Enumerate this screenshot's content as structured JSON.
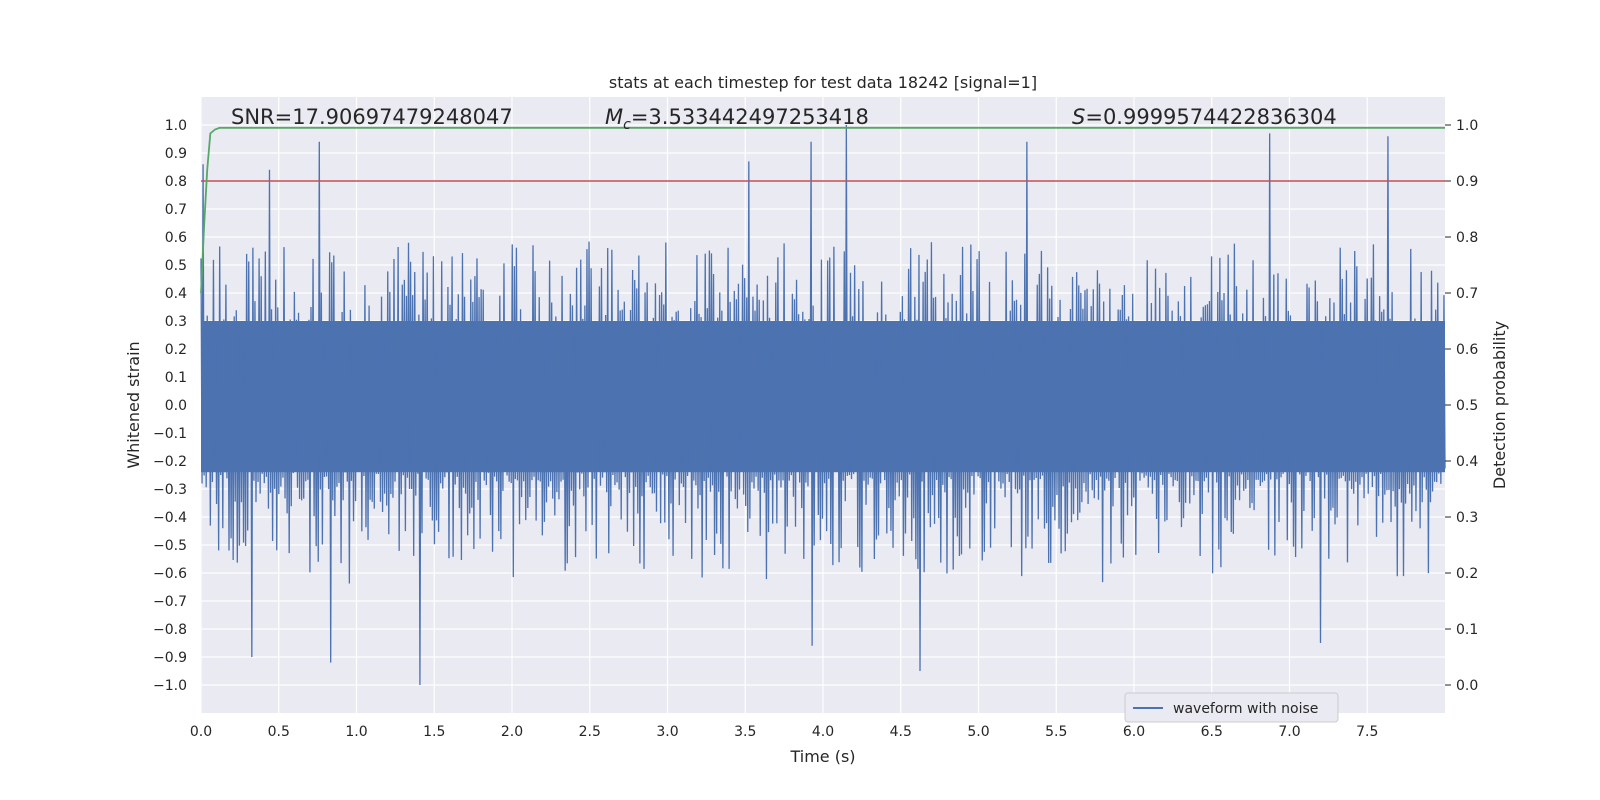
{
  "chart_data": {
    "type": "line",
    "title": "stats at each timestep for test data 18242 [signal=1]",
    "xlabel": "Time (s)",
    "ylabel": "Whitened strain",
    "y2label": "Detection probability",
    "xlim": [
      0.0,
      8.0
    ],
    "ylim": [
      -1.1,
      1.1
    ],
    "y2lim": [
      -0.05,
      1.05
    ],
    "xticks": [
      0.0,
      0.5,
      1.0,
      1.5,
      2.0,
      2.5,
      3.0,
      3.5,
      4.0,
      4.5,
      5.0,
      5.5,
      6.0,
      6.5,
      7.0,
      7.5
    ],
    "xtick_labels": [
      "0.0",
      "0.5",
      "1.0",
      "1.5",
      "2.0",
      "2.5",
      "3.0",
      "3.5",
      "4.0",
      "4.5",
      "5.0",
      "5.5",
      "6.0",
      "6.5",
      "7.0",
      "7.5"
    ],
    "yticks": [
      1.0,
      0.9,
      0.8,
      0.7,
      0.6,
      0.5,
      0.4,
      0.3,
      0.2,
      0.1,
      0.0,
      -0.1,
      -0.2,
      -0.3,
      -0.4,
      -0.5,
      -0.6,
      -0.7,
      -0.8,
      -0.9,
      -1.0
    ],
    "ytick_labels": [
      "1.0",
      "0.9",
      "0.8",
      "0.7",
      "0.6",
      "0.5",
      "0.4",
      "0.3",
      "0.2",
      "0.1",
      "0.0",
      "−0.1",
      "−0.2",
      "−0.3",
      "−0.4",
      "−0.5",
      "−0.6",
      "−0.7",
      "−0.8",
      "−0.9",
      "−1.0"
    ],
    "y2ticks": [
      1.0,
      0.9,
      0.8,
      0.7,
      0.6,
      0.5,
      0.4,
      0.3,
      0.2,
      0.1,
      0.0
    ],
    "y2tick_labels": [
      "1.0",
      "0.9",
      "0.8",
      "0.7",
      "0.6",
      "0.5",
      "0.4",
      "0.3",
      "0.2",
      "0.1",
      "0.0"
    ],
    "annotations": {
      "snr": "SNR=17.90697479248047",
      "mc_symbol": "M",
      "mc_sub": "c",
      "mc_value": "=3.533442497253418",
      "s_symbol": "S",
      "s_value": "=0.9999574422836304"
    },
    "legend": {
      "label": "waveform with noise",
      "location": "lower-right"
    },
    "threshold": {
      "value": 0.9,
      "axis": "y2",
      "color": "#c44e52"
    },
    "waveform": {
      "name": "waveform with noise",
      "color": "#4c72b0",
      "x_range": [
        0.0,
        8.0
      ],
      "samples": 1200,
      "typical_amplitude": 0.45,
      "peaks": [
        {
          "x": 0.02,
          "y": 0.86
        },
        {
          "x": 0.45,
          "y": 0.84
        },
        {
          "x": 0.77,
          "y": 0.94
        },
        {
          "x": 3.53,
          "y": 0.87
        },
        {
          "x": 3.92,
          "y": 0.94
        },
        {
          "x": 4.16,
          "y": 1.0
        },
        {
          "x": 5.31,
          "y": 0.94
        },
        {
          "x": 6.87,
          "y": 0.97
        },
        {
          "x": 7.63,
          "y": 0.96
        },
        {
          "x": 0.33,
          "y": -0.9
        },
        {
          "x": 0.83,
          "y": -0.92
        },
        {
          "x": 1.41,
          "y": -1.0
        },
        {
          "x": 3.93,
          "y": -0.86
        },
        {
          "x": 4.62,
          "y": -0.95
        },
        {
          "x": 7.19,
          "y": -0.85
        }
      ]
    },
    "probability": {
      "name": "Detection probability",
      "color": "#55a868",
      "x": [
        0.0,
        0.02,
        0.04,
        0.06,
        0.09,
        0.12,
        0.2,
        8.0
      ],
      "y": [
        0.7,
        0.82,
        0.92,
        0.985,
        0.992,
        0.995,
        0.995,
        0.995
      ]
    }
  }
}
